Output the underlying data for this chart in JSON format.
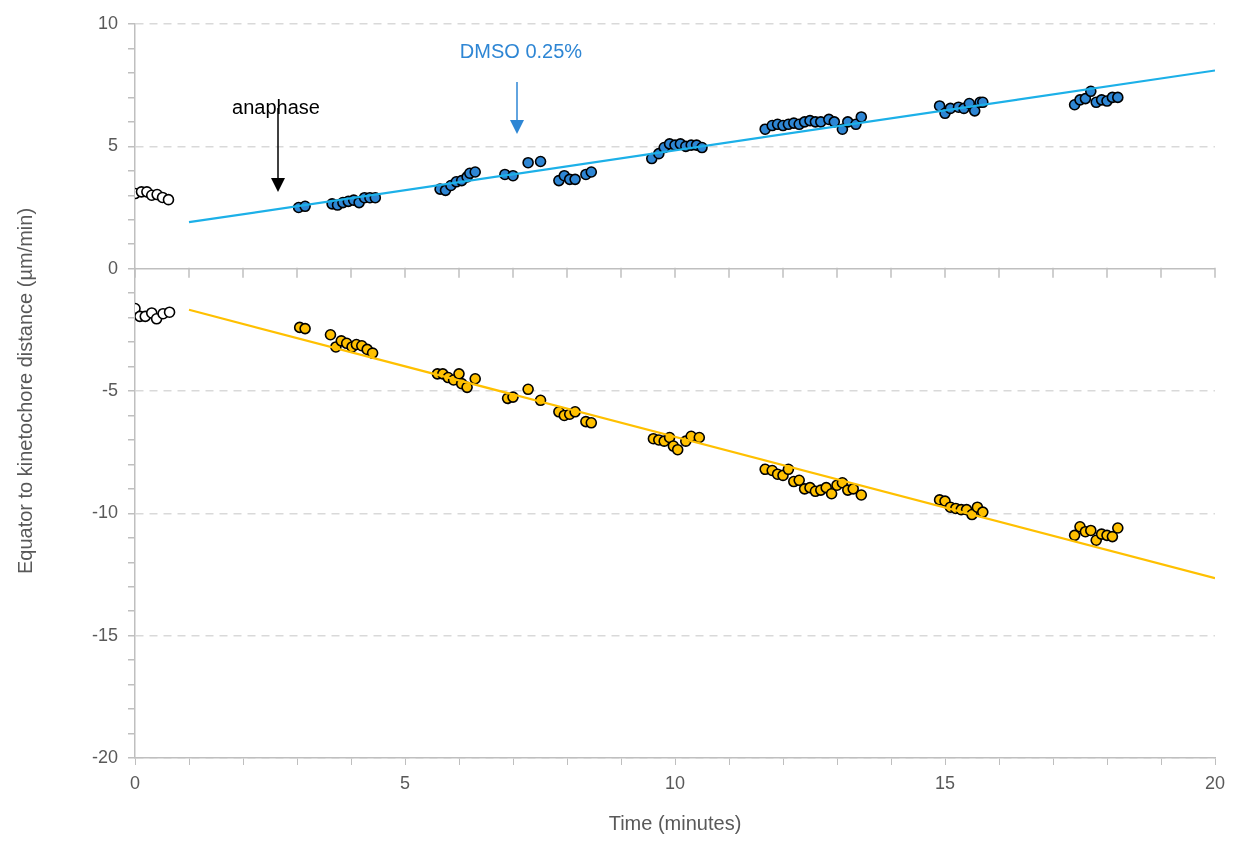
{
  "chart_data": {
    "type": "scatter",
    "xlabel": "Time (minutes)",
    "ylabel": "Equator to kinetochore distance (µm/min)",
    "xlim": [
      0,
      20
    ],
    "ylim": [
      -20,
      10
    ],
    "xticks": [
      0,
      {
        "value": 1,
        "label": null
      },
      {
        "value": 2,
        "label": null
      },
      {
        "value": 3,
        "label": null
      },
      {
        "value": 4,
        "label": null
      },
      5,
      {
        "value": 6,
        "label": null
      },
      {
        "value": 7,
        "label": null
      },
      {
        "value": 8,
        "label": null
      },
      {
        "value": 9,
        "label": null
      },
      10,
      {
        "value": 11,
        "label": null
      },
      {
        "value": 12,
        "label": null
      },
      {
        "value": 13,
        "label": null
      },
      {
        "value": 14,
        "label": null
      },
      15,
      {
        "value": 16,
        "label": null
      },
      {
        "value": 17,
        "label": null
      },
      {
        "value": 18,
        "label": null
      },
      {
        "value": 19,
        "label": null
      },
      20
    ],
    "yticks": [
      -20,
      {
        "value": -19,
        "label": null
      },
      {
        "value": -18,
        "label": null
      },
      {
        "value": -17,
        "label": null
      },
      {
        "value": -16,
        "label": null
      },
      -15,
      {
        "value": -14,
        "label": null
      },
      {
        "value": -13,
        "label": null
      },
      {
        "value": -12,
        "label": null
      },
      {
        "value": -11,
        "label": null
      },
      -10,
      {
        "value": -9,
        "label": null
      },
      {
        "value": -8,
        "label": null
      },
      {
        "value": -7,
        "label": null
      },
      {
        "value": -6,
        "label": null
      },
      -5,
      {
        "value": -4,
        "label": null
      },
      {
        "value": -3,
        "label": null
      },
      {
        "value": -2,
        "label": null
      },
      {
        "value": -1,
        "label": null
      },
      0,
      {
        "value": 1,
        "label": null
      },
      {
        "value": 2,
        "label": null
      },
      {
        "value": 3,
        "label": null
      },
      {
        "value": 4,
        "label": null
      },
      5,
      {
        "value": 6,
        "label": null
      },
      {
        "value": 7,
        "label": null
      },
      {
        "value": 8,
        "label": null
      },
      {
        "value": 9,
        "label": null
      },
      10
    ],
    "grid": "y",
    "legend": false,
    "marker": "circle",
    "series": [
      {
        "color": "#000000",
        "x": [
          0,
          0.12,
          0.22,
          0.31,
          0.41,
          0.51,
          0.62
        ],
        "values": [
          3.07,
          3.14,
          3.14,
          3.0,
          3.03,
          2.91,
          2.82
        ]
      },
      {
        "color": "#2e86d4",
        "x": [
          3.03,
          3.15,
          3.65,
          3.75,
          3.85,
          3.95,
          4.05,
          4.15,
          4.25,
          4.35,
          4.45,
          5.65,
          5.75,
          5.85,
          5.95,
          6.05,
          6.15,
          6.2,
          6.3,
          6.85,
          7.0,
          7.28,
          7.51,
          7.85,
          7.95,
          8.05,
          8.15,
          8.35,
          8.45,
          9.57,
          9.7,
          9.8,
          9.9,
          10.0,
          10.1,
          10.2,
          10.3,
          10.4,
          10.5,
          11.67,
          11.8,
          11.9,
          12.0,
          12.1,
          12.2,
          12.3,
          12.4,
          12.5,
          12.6,
          12.7,
          12.85,
          12.95,
          13.1,
          13.2,
          13.35,
          13.45,
          14.9,
          15.0,
          15.1,
          15.25,
          15.35,
          15.45,
          15.55,
          15.65,
          15.7,
          17.4,
          17.5,
          17.6,
          17.7,
          17.8,
          17.9,
          18.0,
          18.1,
          18.2
        ],
        "values": [
          2.5,
          2.55,
          2.65,
          2.6,
          2.7,
          2.75,
          2.8,
          2.7,
          2.9,
          2.9,
          2.9,
          3.25,
          3.2,
          3.4,
          3.55,
          3.6,
          3.75,
          3.9,
          3.95,
          3.85,
          3.8,
          4.33,
          4.38,
          3.6,
          3.8,
          3.65,
          3.65,
          3.85,
          3.95,
          4.5,
          4.7,
          4.95,
          5.1,
          5.05,
          5.1,
          5.0,
          5.05,
          5.05,
          4.95,
          5.7,
          5.85,
          5.9,
          5.85,
          5.9,
          5.95,
          5.9,
          6.0,
          6.05,
          6.0,
          6.0,
          6.1,
          6.0,
          5.7,
          6.0,
          5.9,
          6.2,
          6.65,
          6.35,
          6.55,
          6.6,
          6.55,
          6.75,
          6.45,
          6.8,
          6.8,
          6.7,
          6.9,
          6.95,
          7.25,
          6.8,
          6.9,
          6.85,
          7.0,
          7.0
        ]
      },
      {
        "color": "#000000",
        "x": [
          0,
          0.09,
          0.19,
          0.31,
          0.4,
          0.52,
          0.64
        ],
        "values": [
          -1.63,
          -1.95,
          -1.95,
          -1.81,
          -2.05,
          -1.84,
          -1.78
        ]
      },
      {
        "color": "#ffc000",
        "x": [
          3.05,
          3.15,
          3.62,
          3.72,
          3.82,
          3.92,
          4.02,
          4.1,
          4.2,
          4.3,
          4.4,
          5.6,
          5.7,
          5.8,
          5.9,
          6.0,
          6.05,
          6.15,
          6.3,
          6.9,
          7.0,
          7.28,
          7.51,
          7.85,
          7.95,
          8.05,
          8.15,
          8.35,
          8.45,
          9.6,
          9.7,
          9.8,
          9.9,
          9.97,
          10.05,
          10.2,
          10.3,
          10.45,
          11.67,
          11.8,
          11.9,
          12.0,
          12.1,
          12.2,
          12.3,
          12.4,
          12.5,
          12.6,
          12.7,
          12.8,
          12.9,
          13.0,
          13.1,
          13.2,
          13.3,
          13.45,
          14.9,
          15.0,
          15.1,
          15.2,
          15.3,
          15.4,
          15.5,
          15.6,
          15.7,
          17.4,
          17.5,
          17.6,
          17.7,
          17.8,
          17.9,
          18.0,
          18.1,
          18.2
        ],
        "values": [
          -2.4,
          -2.45,
          -2.7,
          -3.2,
          -2.95,
          -3.05,
          -3.2,
          -3.1,
          -3.15,
          -3.3,
          -3.45,
          -4.3,
          -4.3,
          -4.45,
          -4.55,
          -4.3,
          -4.7,
          -4.85,
          -4.5,
          -5.3,
          -5.25,
          -4.93,
          -5.38,
          -5.85,
          -6.0,
          -5.95,
          -5.85,
          -6.25,
          -6.3,
          -6.95,
          -7.0,
          -7.05,
          -6.9,
          -7.25,
          -7.4,
          -7.05,
          -6.85,
          -6.9,
          -8.2,
          -8.25,
          -8.4,
          -8.45,
          -8.2,
          -8.7,
          -8.65,
          -9.0,
          -8.95,
          -9.1,
          -9.05,
          -8.95,
          -9.2,
          -8.85,
          -8.75,
          -9.05,
          -9.0,
          -9.25,
          -9.45,
          -9.5,
          -9.75,
          -9.8,
          -9.85,
          -9.85,
          -10.05,
          -9.75,
          -9.95,
          -10.9,
          -10.55,
          -10.75,
          -10.7,
          -11.1,
          -10.85,
          -10.9,
          -10.95,
          -10.6
        ]
      },
      {
        "type": "line",
        "marker": "none",
        "color": "#1cb0e8",
        "x": [
          1,
          20
        ],
        "values": [
          1.9,
          8.1
        ]
      },
      {
        "type": "line",
        "marker": "none",
        "color": "#ffc000",
        "x": [
          1,
          20
        ],
        "values": [
          -1.68,
          -12.65
        ]
      }
    ],
    "line_style": "solid",
    "annotations": [
      "anaphase",
      "DMSO 0.25%"
    ]
  }
}
